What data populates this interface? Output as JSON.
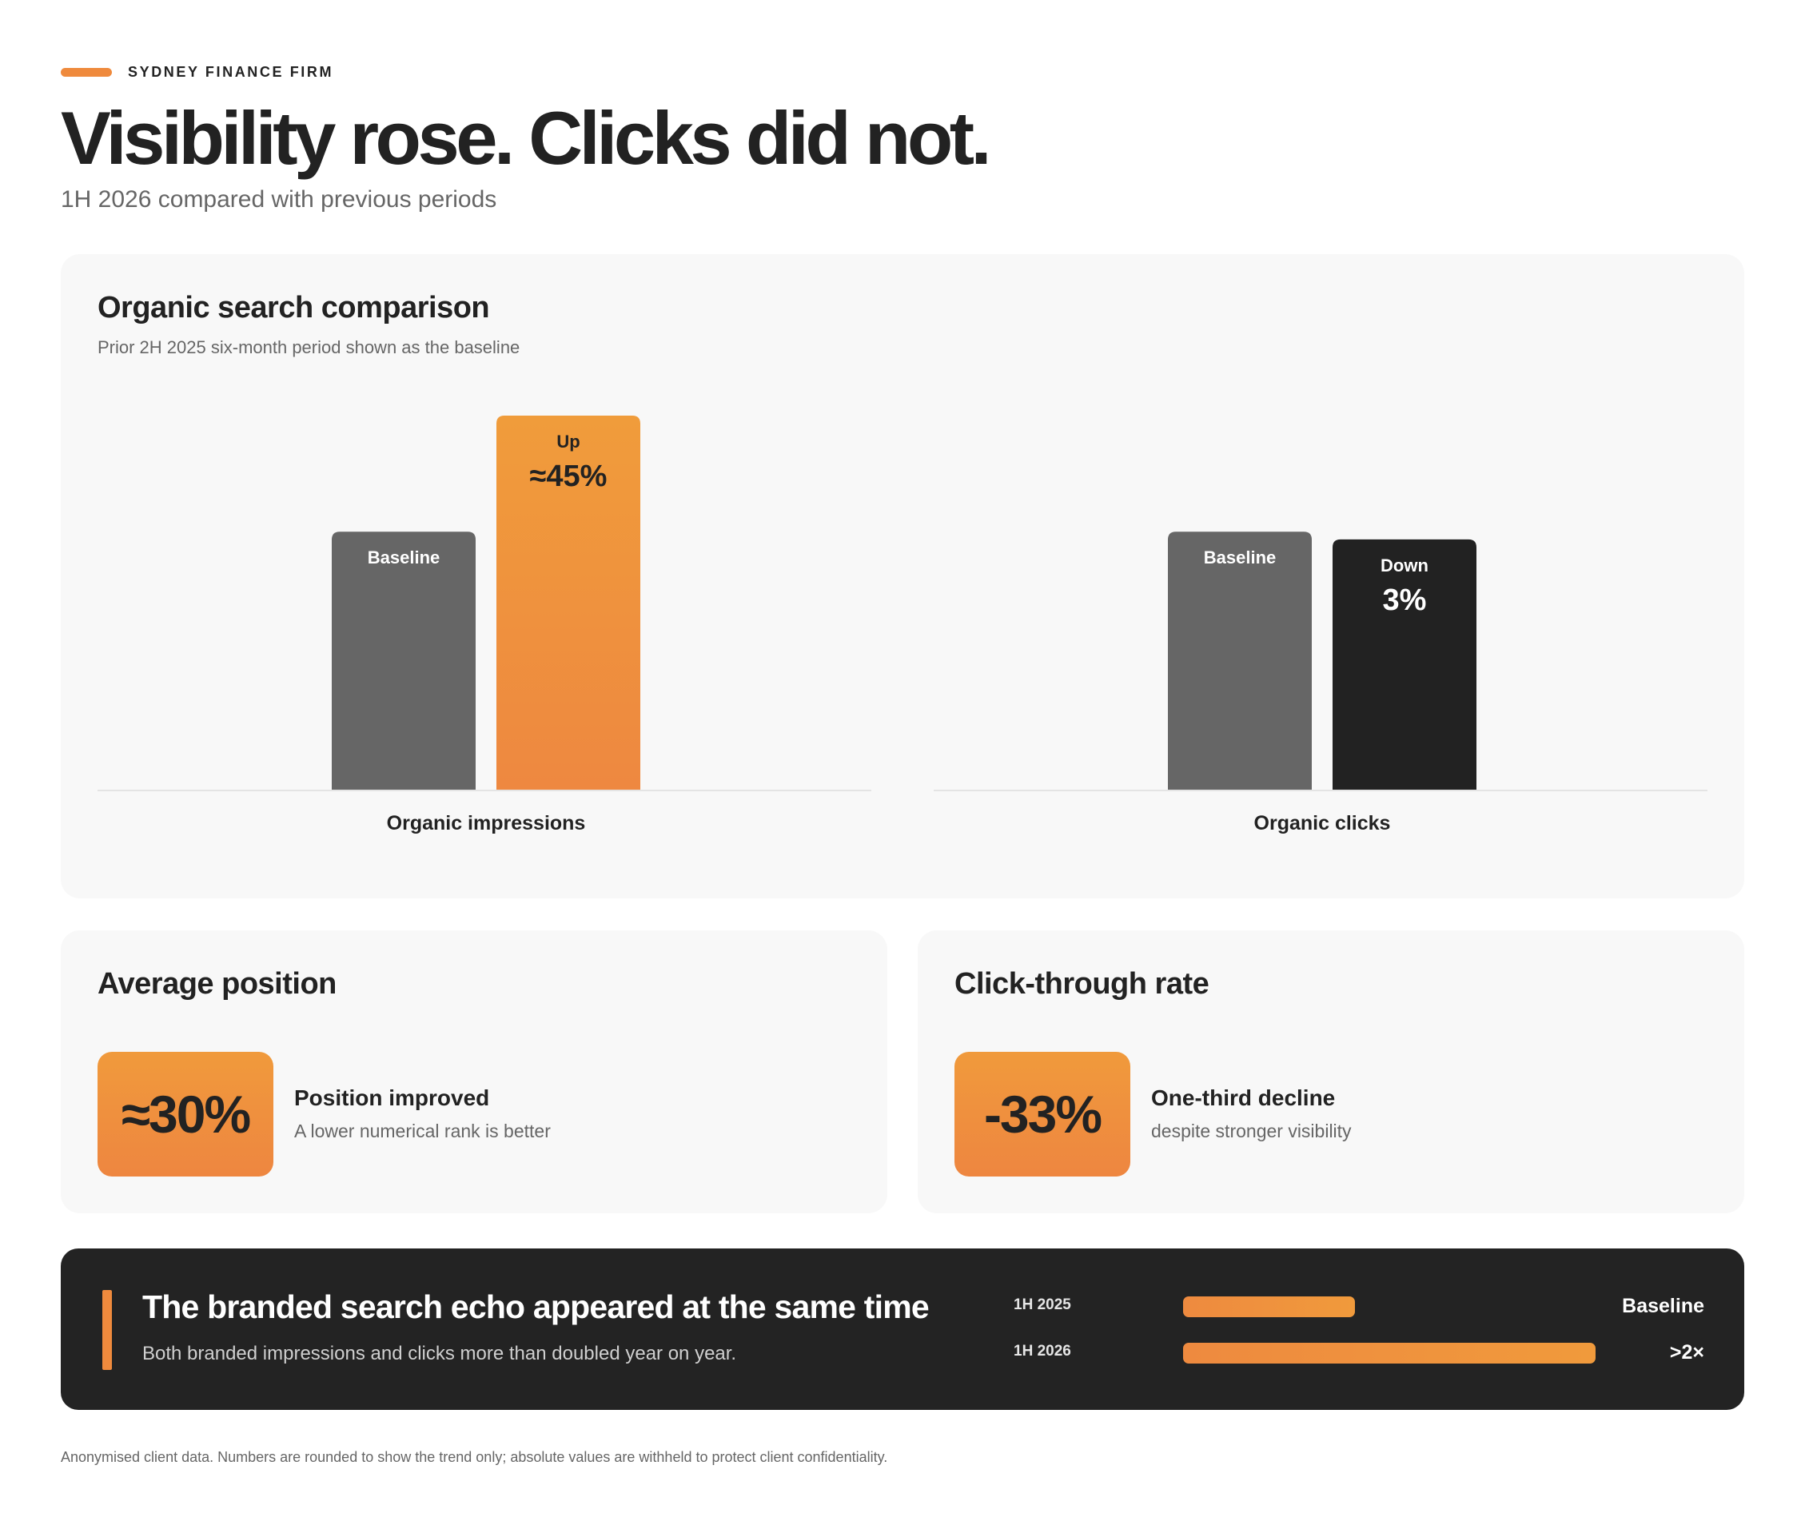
{
  "kicker": "SYDNEY FINANCE FIRM",
  "title": "Visibility rose. Clicks did not.",
  "subtitle": "1H 2026 compared with previous periods",
  "colors": {
    "accent": "#ef8a3d",
    "accent_light": "#f09c3b",
    "baseline_gray": "#666666",
    "dark": "#222222",
    "card_bg": "#f8f8f8"
  },
  "chart_data": {
    "type": "bar",
    "title": "Organic search comparison",
    "subtitle": "Prior 2H 2025 six-month period shown as the baseline",
    "groups": [
      {
        "category": "Organic impressions",
        "bars": [
          {
            "label_top": "Baseline",
            "label_main": "",
            "value": 100,
            "style": "baseline"
          },
          {
            "label_top": "Up",
            "label_main": "≈45%",
            "value": 145,
            "style": "accent"
          }
        ]
      },
      {
        "category": "Organic clicks",
        "bars": [
          {
            "label_top": "Baseline",
            "label_main": "",
            "value": 100,
            "style": "baseline"
          },
          {
            "label_top": "Down",
            "label_main": "3%",
            "value": 97,
            "style": "dark"
          }
        ]
      }
    ],
    "ylim": [
      0,
      145
    ],
    "grid": false
  },
  "position_card": {
    "title": "Average position",
    "value": "≈30%",
    "headline": "Position improved",
    "note": "A lower numerical rank is better"
  },
  "ctr_card": {
    "title": "Click-through rate",
    "value": "-33%",
    "headline": "One-third decline",
    "note": "despite stronger visibility"
  },
  "branded": {
    "title": "The branded search echo appeared at the same time",
    "description": "Both branded impressions and clicks more than doubled year on year.",
    "rows": [
      {
        "period": "1H 2025",
        "value": 1,
        "label": "Baseline"
      },
      {
        "period": "1H 2026",
        "value": 2.4,
        "label": ">2×"
      }
    ]
  },
  "footnote": "Anonymised client data. Numbers are rounded to show the trend only; absolute values are withheld to protect client confidentiality."
}
